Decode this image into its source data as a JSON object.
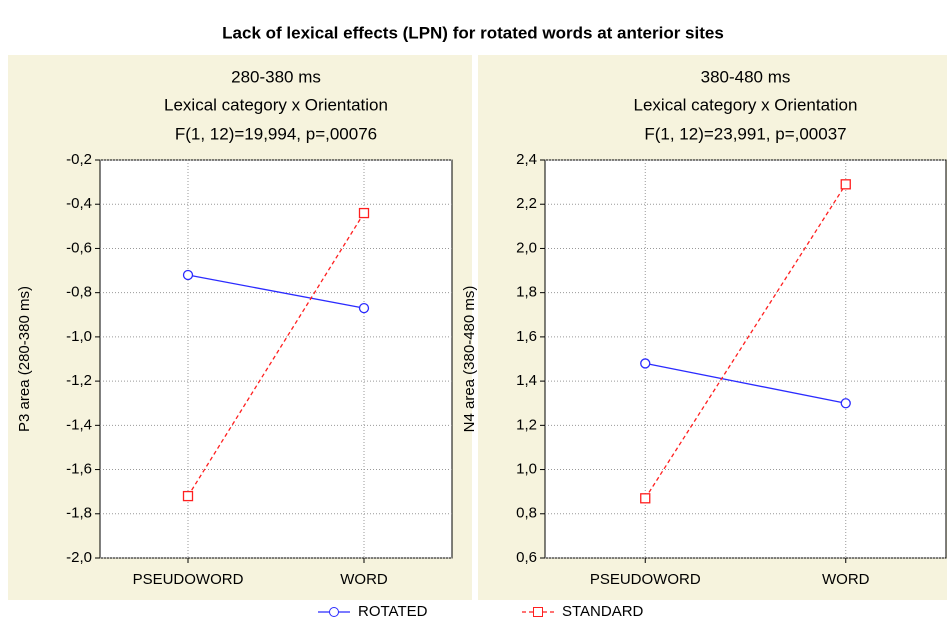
{
  "title": "Lack of lexical effects (LPN) for rotated words at anterior sites",
  "chart_data": [
    {
      "type": "line",
      "title": "280-380 ms",
      "subtitle": [
        "Lexical category x Orientation",
        "F(1, 12)=19,994, p=,00076"
      ],
      "y_label": "P3 area (280-380 ms)",
      "categories": [
        "PSEUDOWORD",
        "WORD"
      ],
      "series": [
        {
          "name": "ROTATED",
          "color": "#2b2bff",
          "marker": "circle",
          "dashed": false,
          "values": [
            -0.72,
            -0.87
          ]
        },
        {
          "name": "STANDARD",
          "color": "#ff1f1f",
          "marker": "square",
          "dashed": true,
          "values": [
            -1.72,
            -0.44
          ]
        }
      ],
      "ylim": [
        -2.0,
        -0.2
      ],
      "yticks": [
        {
          "value": -2.0,
          "label": "-2,0"
        },
        {
          "value": -1.8,
          "label": "-1,8"
        },
        {
          "value": -1.6,
          "label": "-1,6"
        },
        {
          "value": -1.4,
          "label": "-1,4"
        },
        {
          "value": -1.2,
          "label": "-1,2"
        },
        {
          "value": -1.0,
          "label": "-1,0"
        },
        {
          "value": -0.8,
          "label": "-0,8"
        },
        {
          "value": -0.6,
          "label": "-0,6"
        },
        {
          "value": -0.4,
          "label": "-0,4"
        },
        {
          "value": -0.2,
          "label": "-0,2"
        }
      ],
      "grid": true
    },
    {
      "type": "line",
      "title": "380-480 ms",
      "subtitle": [
        "Lexical category x Orientation",
        "F(1, 12)=23,991, p=,00037"
      ],
      "y_label": "N4 area (380-480 ms)",
      "categories": [
        "PSEUDOWORD",
        "WORD"
      ],
      "series": [
        {
          "name": "ROTATED",
          "color": "#2b2bff",
          "marker": "circle",
          "dashed": false,
          "values": [
            1.48,
            1.3
          ]
        },
        {
          "name": "STANDARD",
          "color": "#ff1f1f",
          "marker": "square",
          "dashed": true,
          "values": [
            0.87,
            2.29
          ]
        }
      ],
      "ylim": [
        0.6,
        2.4
      ],
      "yticks": [
        {
          "value": 0.6,
          "label": "0,6"
        },
        {
          "value": 0.8,
          "label": "0,8"
        },
        {
          "value": 1.0,
          "label": "1,0"
        },
        {
          "value": 1.2,
          "label": "1,2"
        },
        {
          "value": 1.4,
          "label": "1,4"
        },
        {
          "value": 1.6,
          "label": "1,6"
        },
        {
          "value": 1.8,
          "label": "1,8"
        },
        {
          "value": 2.0,
          "label": "2,0"
        },
        {
          "value": 2.2,
          "label": "2,2"
        },
        {
          "value": 2.4,
          "label": "2,4"
        }
      ],
      "grid": true
    }
  ]
}
